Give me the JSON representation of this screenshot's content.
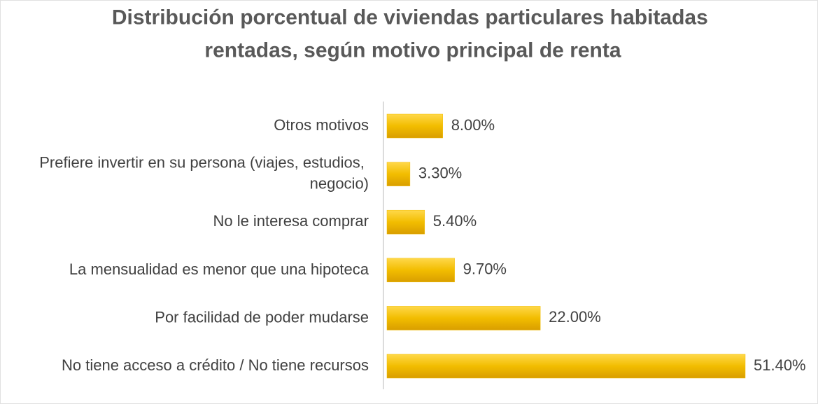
{
  "chart_data": {
    "type": "barh",
    "title": "Distribución porcentual de viviendas particulares habitadas rentadas, según motivo principal de renta",
    "categories": [
      "Otros motivos",
      "Prefiere invertir en su persona (viajes, estudios, negocio)",
      "No le interesa comprar",
      "La mensualidad es menor que una hipoteca",
      "Por facilidad de poder mudarse",
      "No tiene acceso a crédito / No tiene recursos"
    ],
    "values": [
      8,
      3.3,
      5.4,
      9.7,
      22,
      51.4
    ],
    "value_labels": [
      "8.00%",
      "3.30%",
      "5.40%",
      "9.70%",
      "22.00%",
      "51.40%"
    ],
    "color": "#f2bd00"
  }
}
